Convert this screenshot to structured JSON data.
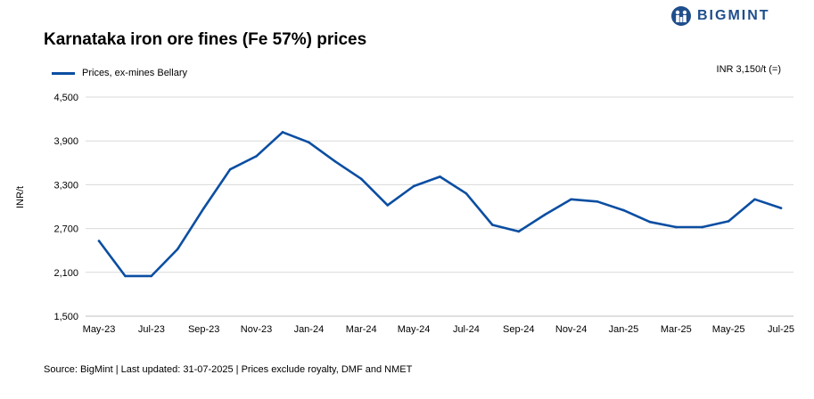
{
  "header": {
    "title": "Karnataka iron ore fines (Fe 57%) prices",
    "logo_text": "BIGMINT"
  },
  "annotation": "INR 3,150/t (=)",
  "footer": "Source: BigMint | Last updated: 31-07-2025 | Prices exclude royalty, DMF and NMET",
  "colors": {
    "series": "#0b4ea2",
    "grid": "#d9d9d9",
    "brand": "#1f4e8c"
  },
  "chart_data": {
    "type": "line",
    "title": "Karnataka iron ore fines (Fe 57%) prices",
    "xlabel": "",
    "ylabel": "INR/t",
    "ylim": [
      1500,
      4500
    ],
    "yticks": [
      1500,
      2100,
      2700,
      3300,
      3900,
      4500
    ],
    "ytick_labels": [
      "1,500",
      "2,100",
      "2,700",
      "3,300",
      "3,900",
      "4,500"
    ],
    "grid": "horizontal",
    "legend": "top-left",
    "x": [
      "May-23",
      "Jun-23",
      "Jul-23",
      "Aug-23",
      "Sep-23",
      "Oct-23",
      "Nov-23",
      "Dec-23",
      "Jan-24",
      "Feb-24",
      "Mar-24",
      "Apr-24",
      "May-24",
      "Jun-24",
      "Jul-24",
      "Aug-24",
      "Sep-24",
      "Oct-24",
      "Nov-24",
      "Dec-24",
      "Jan-25",
      "Feb-25",
      "Mar-25",
      "Apr-25",
      "May-25",
      "Jun-25",
      "Jul-25"
    ],
    "xtick_labels": [
      "May-23",
      "Jul-23",
      "Sep-23",
      "Nov-23",
      "Jan-24",
      "Mar-24",
      "May-24",
      "Jul-24",
      "Sep-24",
      "Nov-24",
      "Jan-25",
      "Mar-25",
      "May-25",
      "Jul-25"
    ],
    "series": [
      {
        "name": "Prices, ex-mines Bellary",
        "values": [
          2530,
          2050,
          2050,
          2420,
          2980,
          3510,
          3690,
          4020,
          3880,
          3620,
          3380,
          3020,
          3280,
          3410,
          3180,
          2750,
          2660,
          2890,
          3100,
          3070,
          2950,
          2790,
          2720,
          2720,
          2800,
          3100,
          2980
        ]
      }
    ]
  }
}
